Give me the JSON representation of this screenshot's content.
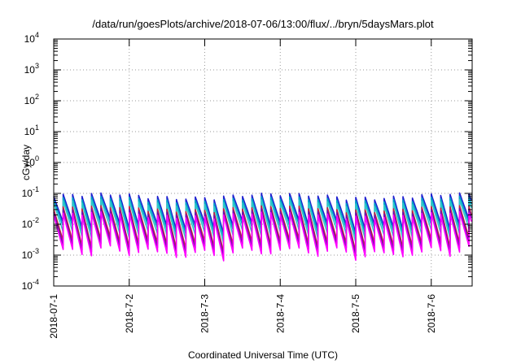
{
  "chart_data": {
    "type": "line",
    "title": "/data/run/goesPlots/archive/2018-07-06/13:00/flux/../bryn/5daysMars.plot",
    "xlabel": "Coordinated Universal Time (UTC)",
    "ylabel": "cGy/day",
    "y_scale": "log",
    "ylim": [
      0.0001,
      10000
    ],
    "y_ticks": [
      {
        "value": 0.0001,
        "base": "10",
        "exp": "-4"
      },
      {
        "value": 0.001,
        "base": "10",
        "exp": "-3"
      },
      {
        "value": 0.01,
        "base": "10",
        "exp": "-2"
      },
      {
        "value": 0.1,
        "base": "10",
        "exp": "-1"
      },
      {
        "value": 1,
        "base": "10",
        "exp": "0"
      },
      {
        "value": 10,
        "base": "10",
        "exp": "1"
      },
      {
        "value": 100,
        "base": "10",
        "exp": "2"
      },
      {
        "value": 1000,
        "base": "10",
        "exp": "3"
      },
      {
        "value": 10000,
        "base": "10",
        "exp": "4"
      }
    ],
    "xlim": [
      "2018-07-01T00:00",
      "2018-07-06T13:00"
    ],
    "x_ticks": [
      {
        "label": "2018-07-1",
        "time": "2018-07-01T00:00"
      },
      {
        "label": "2018-7-2",
        "time": "2018-07-02T00:00"
      },
      {
        "label": "2018-7-3",
        "time": "2018-07-03T00:00"
      },
      {
        "label": "2018-7-4",
        "time": "2018-07-04T00:00"
      },
      {
        "label": "2018-7-5",
        "time": "2018-07-05T00:00"
      },
      {
        "label": "2018-7-6",
        "time": "2018-07-06T00:00"
      }
    ],
    "grid": true,
    "series": [
      {
        "color": "#1f1fd0",
        "peak": 0.09,
        "trough": 0.012
      },
      {
        "color": "#00a0c8",
        "peak": 0.07,
        "trough": 0.009
      },
      {
        "color": "#30c8c8",
        "peak": 0.055,
        "trough": 0.006
      },
      {
        "color": "#c02040",
        "peak": 0.035,
        "trough": 0.003
      },
      {
        "color": "#7010b0",
        "peak": 0.028,
        "trough": 0.0022
      },
      {
        "color": "#ff00ff",
        "peak": 0.022,
        "trough": 0.0016
      }
    ],
    "cycle_hours": 3
  }
}
